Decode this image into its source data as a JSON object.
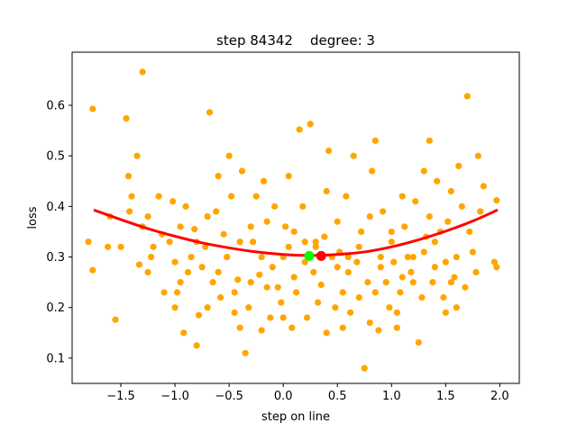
{
  "chart_data": {
    "type": "scatter",
    "title": "step 84342    degree: 3",
    "xlabel": "step on line",
    "ylabel": "loss",
    "xlim": [
      -1.95,
      2.18
    ],
    "ylim": [
      0.05,
      0.705
    ],
    "xticks": [
      -1.5,
      -1.0,
      -0.5,
      0.0,
      0.5,
      1.0,
      1.5,
      2.0
    ],
    "xtick_labels": [
      "−1.5",
      "−1.0",
      "−0.5",
      "0.0",
      "0.5",
      "1.0",
      "1.5",
      "2.0"
    ],
    "yticks": [
      0.1,
      0.2,
      0.3,
      0.4,
      0.5,
      0.6
    ],
    "ytick_labels": [
      "0.1",
      "0.2",
      "0.3",
      "0.4",
      "0.5",
      "0.6"
    ],
    "grid": false,
    "colors": {
      "points": "#ffa500",
      "fit": "#ff0000",
      "fit_min_marker": "#ff0000",
      "current_marker": "#00ff00"
    },
    "scatter_points": [
      [
        -1.76,
        0.593
      ],
      [
        -1.3,
        0.666
      ],
      [
        -1.62,
        0.32
      ],
      [
        -1.55,
        0.176
      ],
      [
        -1.76,
        0.274
      ],
      [
        -1.45,
        0.574
      ],
      [
        -1.35,
        0.5
      ],
      [
        -1.43,
        0.46
      ],
      [
        -1.4,
        0.42
      ],
      [
        -1.25,
        0.38
      ],
      [
        -1.3,
        0.36
      ],
      [
        -1.2,
        0.32
      ],
      [
        -1.15,
        0.42
      ],
      [
        -1.05,
        0.33
      ],
      [
        -1.0,
        0.2
      ],
      [
        -0.95,
        0.25
      ],
      [
        -0.9,
        0.4
      ],
      [
        -0.85,
        0.3
      ],
      [
        -0.8,
        0.125
      ],
      [
        -0.75,
        0.28
      ],
      [
        -0.7,
        0.38
      ],
      [
        -0.68,
        0.586
      ],
      [
        -0.65,
        0.25
      ],
      [
        -0.6,
        0.46
      ],
      [
        -0.55,
        0.345
      ],
      [
        -0.5,
        0.5
      ],
      [
        -0.45,
        0.19
      ],
      [
        -0.4,
        0.33
      ],
      [
        -0.35,
        0.11
      ],
      [
        -0.3,
        0.25
      ],
      [
        -0.25,
        0.42
      ],
      [
        -0.2,
        0.155
      ],
      [
        -0.15,
        0.37
      ],
      [
        -0.1,
        0.28
      ],
      [
        -0.05,
        0.24
      ],
      [
        0.0,
        0.3
      ],
      [
        0.05,
        0.46
      ],
      [
        0.1,
        0.35
      ],
      [
        0.15,
        0.552
      ],
      [
        0.2,
        0.29
      ],
      [
        0.25,
        0.563
      ],
      [
        0.3,
        0.33
      ],
      [
        0.35,
        0.245
      ],
      [
        0.4,
        0.43
      ],
      [
        0.45,
        0.3
      ],
      [
        0.5,
        0.37
      ],
      [
        0.55,
        0.16
      ],
      [
        0.6,
        0.27
      ],
      [
        0.65,
        0.5
      ],
      [
        0.7,
        0.22
      ],
      [
        0.75,
        0.08
      ],
      [
        0.8,
        0.38
      ],
      [
        0.85,
        0.53
      ],
      [
        0.9,
        0.3
      ],
      [
        0.95,
        0.25
      ],
      [
        1.0,
        0.33
      ],
      [
        1.05,
        0.16
      ],
      [
        1.1,
        0.42
      ],
      [
        1.15,
        0.3
      ],
      [
        1.2,
        0.25
      ],
      [
        1.25,
        0.131
      ],
      [
        1.3,
        0.47
      ],
      [
        1.35,
        0.53
      ],
      [
        1.4,
        0.28
      ],
      [
        1.45,
        0.35
      ],
      [
        1.5,
        0.19
      ],
      [
        1.55,
        0.43
      ],
      [
        1.6,
        0.3
      ],
      [
        1.65,
        0.4
      ],
      [
        1.7,
        0.618
      ],
      [
        1.75,
        0.31
      ],
      [
        1.8,
        0.5
      ],
      [
        1.85,
        0.44
      ],
      [
        1.95,
        0.29
      ],
      [
        1.97,
        0.28
      ],
      [
        1.97,
        0.412
      ],
      [
        -1.6,
        0.38
      ],
      [
        -1.5,
        0.32
      ],
      [
        -1.42,
        0.39
      ],
      [
        -1.33,
        0.285
      ],
      [
        -1.22,
        0.3
      ],
      [
        -1.12,
        0.345
      ],
      [
        -1.02,
        0.41
      ],
      [
        -0.98,
        0.23
      ],
      [
        -0.92,
        0.15
      ],
      [
        -0.88,
        0.27
      ],
      [
        -0.82,
        0.355
      ],
      [
        -0.78,
        0.185
      ],
      [
        -0.72,
        0.32
      ],
      [
        -0.62,
        0.39
      ],
      [
        -0.58,
        0.22
      ],
      [
        -0.52,
        0.3
      ],
      [
        -0.48,
        0.42
      ],
      [
        -0.42,
        0.255
      ],
      [
        -0.38,
        0.47
      ],
      [
        -0.32,
        0.2
      ],
      [
        -0.28,
        0.33
      ],
      [
        -0.22,
        0.265
      ],
      [
        -0.18,
        0.45
      ],
      [
        -0.12,
        0.18
      ],
      [
        -0.08,
        0.4
      ],
      [
        -0.02,
        0.21
      ],
      [
        0.02,
        0.36
      ],
      [
        0.08,
        0.16
      ],
      [
        0.12,
        0.23
      ],
      [
        0.18,
        0.4
      ],
      [
        0.22,
        0.18
      ],
      [
        0.28,
        0.27
      ],
      [
        0.32,
        0.21
      ],
      [
        0.38,
        0.34
      ],
      [
        0.42,
        0.51
      ],
      [
        0.48,
        0.2
      ],
      [
        0.52,
        0.31
      ],
      [
        0.58,
        0.42
      ],
      [
        0.62,
        0.19
      ],
      [
        0.68,
        0.29
      ],
      [
        0.72,
        0.35
      ],
      [
        0.78,
        0.25
      ],
      [
        0.82,
        0.47
      ],
      [
        0.88,
        0.155
      ],
      [
        0.92,
        0.39
      ],
      [
        0.98,
        0.2
      ],
      [
        1.02,
        0.29
      ],
      [
        1.08,
        0.23
      ],
      [
        1.12,
        0.36
      ],
      [
        1.18,
        0.27
      ],
      [
        1.22,
        0.41
      ],
      [
        1.28,
        0.22
      ],
      [
        1.32,
        0.34
      ],
      [
        1.38,
        0.25
      ],
      [
        1.42,
        0.45
      ],
      [
        1.48,
        0.22
      ],
      [
        1.52,
        0.37
      ],
      [
        1.58,
        0.26
      ],
      [
        1.62,
        0.48
      ],
      [
        1.68,
        0.24
      ],
      [
        1.72,
        0.35
      ],
      [
        1.78,
        0.27
      ],
      [
        1.82,
        0.39
      ],
      [
        -1.8,
        0.33
      ],
      [
        -1.1,
        0.23
      ],
      [
        -0.7,
        0.2
      ],
      [
        -0.4,
        0.16
      ],
      [
        0.0,
        0.18
      ],
      [
        0.4,
        0.15
      ],
      [
        0.8,
        0.17
      ],
      [
        1.2,
        0.3
      ],
      [
        1.6,
        0.2
      ],
      [
        -0.6,
        0.27
      ],
      [
        -0.2,
        0.3
      ],
      [
        0.3,
        0.32
      ],
      [
        0.6,
        0.3
      ],
      [
        0.9,
        0.28
      ],
      [
        1.3,
        0.31
      ],
      [
        -1.0,
        0.29
      ],
      [
        -0.3,
        0.36
      ],
      [
        0.1,
        0.26
      ],
      [
        0.5,
        0.28
      ],
      [
        1.0,
        0.35
      ],
      [
        1.4,
        0.33
      ],
      [
        -0.8,
        0.33
      ],
      [
        0.2,
        0.33
      ],
      [
        0.7,
        0.32
      ],
      [
        1.1,
        0.26
      ],
      [
        1.5,
        0.29
      ],
      [
        -0.95,
        0.36
      ],
      [
        -0.45,
        0.23
      ],
      [
        0.05,
        0.32
      ],
      [
        0.55,
        0.23
      ],
      [
        1.05,
        0.19
      ],
      [
        1.55,
        0.25
      ],
      [
        -1.25,
        0.27
      ],
      [
        -0.15,
        0.24
      ],
      [
        0.85,
        0.23
      ],
      [
        1.35,
        0.38
      ]
    ],
    "fit_curve": {
      "name": "",
      "x": [
        -1.75,
        -1.5,
        -1.25,
        -1.0,
        -0.75,
        -0.5,
        -0.25,
        0.0,
        0.25,
        0.5,
        0.75,
        1.0,
        1.25,
        1.5,
        1.75,
        1.98
      ],
      "y": [
        0.393,
        0.374,
        0.356,
        0.341,
        0.328,
        0.318,
        0.31,
        0.305,
        0.303,
        0.305,
        0.31,
        0.32,
        0.334,
        0.351,
        0.371,
        0.393
      ]
    },
    "fit_minimum": {
      "x": 0.35,
      "y": 0.302
    },
    "current_point": {
      "x": 0.24,
      "y": 0.302
    }
  }
}
